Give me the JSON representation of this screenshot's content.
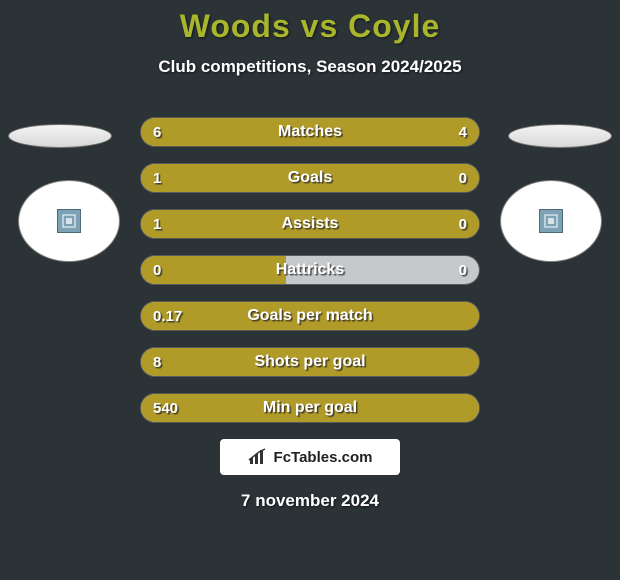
{
  "colors": {
    "background": "#2b3337",
    "title": "#a9b52b",
    "bar_fill": "#b09a28",
    "bar_bg": "#c6c9cb",
    "text_white": "#ffffff"
  },
  "header": {
    "title": "Woods vs Coyle",
    "subtitle": "Club competitions, Season 2024/2025"
  },
  "players": {
    "left_crest": "crest",
    "right_crest": "crest"
  },
  "stats": [
    {
      "label": "Matches",
      "left_value": "6",
      "right_value": "4",
      "left_pct": 100,
      "right_pct": 0
    },
    {
      "label": "Goals",
      "left_value": "1",
      "right_value": "0",
      "left_pct": 77,
      "right_pct": 23
    },
    {
      "label": "Assists",
      "left_value": "1",
      "right_value": "0",
      "left_pct": 77,
      "right_pct": 23
    },
    {
      "label": "Hattricks",
      "left_value": "0",
      "right_value": "0",
      "left_pct": 43,
      "right_pct": 0
    },
    {
      "label": "Goals per match",
      "left_value": "0.17",
      "right_value": "",
      "left_pct": 100,
      "right_pct": 0
    },
    {
      "label": "Shots per goal",
      "left_value": "8",
      "right_value": "",
      "left_pct": 100,
      "right_pct": 0
    },
    {
      "label": "Min per goal",
      "left_value": "540",
      "right_value": "",
      "left_pct": 100,
      "right_pct": 0
    }
  ],
  "footer": {
    "brand": "FcTables.com",
    "date": "7 november 2024"
  }
}
